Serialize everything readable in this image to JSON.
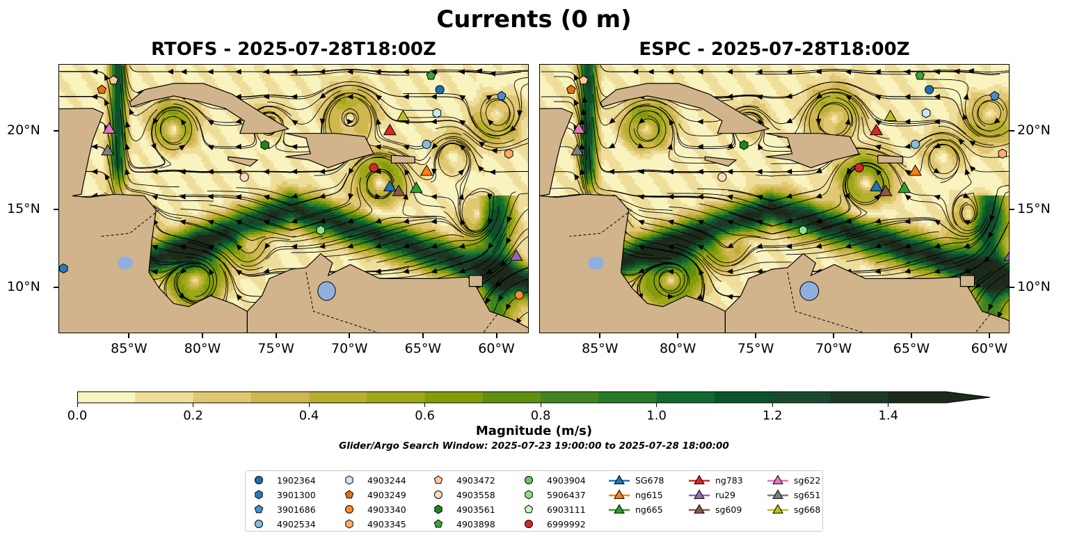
{
  "title": "Currents (0 m)",
  "panels": [
    {
      "id": "rtofs",
      "title": "RTOFS - 2025-07-28T18:00Z"
    },
    {
      "id": "espc",
      "title": "ESPC - 2025-07-28T18:00Z"
    }
  ],
  "x_ticks": [
    {
      "lon": -85,
      "label": "85°W"
    },
    {
      "lon": -80,
      "label": "80°W"
    },
    {
      "lon": -75,
      "label": "75°W"
    },
    {
      "lon": -70,
      "label": "70°W"
    },
    {
      "lon": -65,
      "label": "65°W"
    },
    {
      "lon": -60,
      "label": "60°W"
    }
  ],
  "y_ticks": [
    {
      "lat": 20,
      "label": "20°N"
    },
    {
      "lat": 15,
      "label": "15°N"
    },
    {
      "lat": 10,
      "label": "10°N"
    }
  ],
  "colorbar": {
    "label": "Magnitude (m/s)",
    "range": [
      0,
      1.5
    ],
    "extend": "max",
    "colors": [
      "#f8f3bf",
      "#efdd9a",
      "#e0c873",
      "#cfb74f",
      "#b7b02f",
      "#9ea71a",
      "#839c0a",
      "#5f9010",
      "#428420",
      "#277a29",
      "#10692f",
      "#0a542b",
      "#194a2d",
      "#1d3925",
      "#1c2a1a"
    ],
    "ticks": [
      "0.0",
      "0.2",
      "0.4",
      "0.6",
      "0.8",
      "1.0",
      "1.2",
      "1.4"
    ]
  },
  "search_window": "Glider/Argo Search Window: 2025-07-23 19:00:00 to 2025-07-28 18:00:00",
  "legend": [
    {
      "label": "1902364",
      "shape": "circle",
      "color": "#1f6fae",
      "lon": -63.9,
      "lat": 22.7
    },
    {
      "label": "3901300",
      "shape": "hexagon",
      "color": "#2b7bba",
      "lon": -89.5,
      "lat": 11.25
    },
    {
      "label": "3901686",
      "shape": "pentagon",
      "color": "#4a90d0",
      "lon": -59.7,
      "lat": 22.3
    },
    {
      "label": "4902534",
      "shape": "circle",
      "color": "#7fbfe8",
      "lon": -64.8,
      "lat": 19.2
    },
    {
      "label": "4903244",
      "shape": "hexagon",
      "color": "#c6e6fb",
      "lon": -64.1,
      "lat": 21.2
    },
    {
      "label": "4903249",
      "shape": "pentagon",
      "color": "#e6720f",
      "lon": -86.9,
      "lat": 22.7
    },
    {
      "label": "4903340",
      "shape": "circle",
      "color": "#ff8c2e",
      "lon": -58.5,
      "lat": 9.55
    },
    {
      "label": "4903345",
      "shape": "hexagon",
      "color": "#ffab6a",
      "lon": -59.2,
      "lat": 18.6
    },
    {
      "label": "4903472",
      "shape": "pentagon",
      "color": "#ffc69a",
      "lon": -86.1,
      "lat": 23.3
    },
    {
      "label": "4903558",
      "shape": "circle",
      "color": "#ffdcbc",
      "lon": -77.2,
      "lat": 17.1
    },
    {
      "label": "4903561",
      "shape": "hexagon",
      "color": "#1a8a1a",
      "lon": -75.8,
      "lat": 19.15
    },
    {
      "label": "4903898",
      "shape": "pentagon",
      "color": "#3aa53a",
      "lon": -64.5,
      "lat": 23.6
    },
    {
      "label": "4903904",
      "shape": "circle",
      "color": "#66c466"
    },
    {
      "label": "5906437",
      "shape": "hexagon",
      "color": "#8ee08e",
      "lon": -72.0,
      "lat": 13.7
    },
    {
      "label": "6903111",
      "shape": "pentagon",
      "color": "#c8f5c0"
    },
    {
      "label": "6999992",
      "shape": "circle",
      "color": "#d62728",
      "lon": -68.4,
      "lat": 17.7
    },
    {
      "label": "SG678",
      "shape": "triangle",
      "color": "#1f77b4",
      "lon": -67.3,
      "lat": 16.5
    },
    {
      "label": "ng615",
      "shape": "triangle",
      "color": "#ff7f0e",
      "lon": -64.8,
      "lat": 17.5
    },
    {
      "label": "ng665",
      "shape": "triangle",
      "color": "#2ca02c",
      "lon": -65.5,
      "lat": 16.4
    },
    {
      "label": "ng783",
      "shape": "triangle",
      "color": "#d62728",
      "lon": -67.3,
      "lat": 20.1
    },
    {
      "label": "ru29",
      "shape": "triangle",
      "color": "#9467bd",
      "lon": -58.7,
      "lat": 12.05
    },
    {
      "label": "sg609",
      "shape": "triangle",
      "color": "#8c564b",
      "lon": -66.7,
      "lat": 16.2
    },
    {
      "label": "sg622",
      "shape": "triangle",
      "color": "#e377c2",
      "lon": -86.4,
      "lat": 20.2
    },
    {
      "label": "sg651",
      "shape": "triangle",
      "color": "#7f7f7f",
      "lon": -86.5,
      "lat": 18.8
    },
    {
      "label": "sg668",
      "shape": "triangle",
      "color": "#bcbd22",
      "lon": -66.4,
      "lat": 21.0
    }
  ]
}
